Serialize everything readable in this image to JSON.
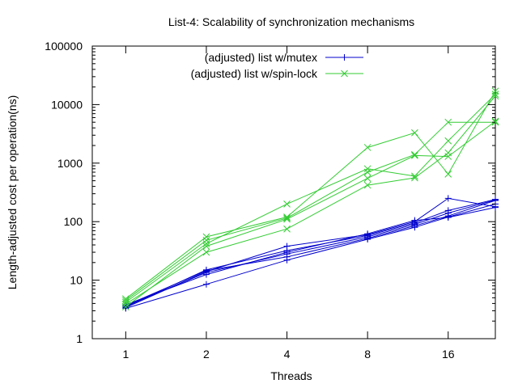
{
  "chart_data": {
    "type": "line",
    "title": "List-4: Scalability of synchronization mechanisms",
    "xlabel": "Threads",
    "ylabel": "Length-adjusted cost per operation(ns)",
    "x_scale": "log2",
    "y_scale": "log10",
    "xlim": [
      0.75,
      24
    ],
    "ylim": [
      1,
      100000
    ],
    "x_ticks": [
      1,
      2,
      4,
      8,
      16
    ],
    "x_tick_labels": [
      "1",
      "2",
      "4",
      "8",
      "16"
    ],
    "y_ticks": [
      1,
      10,
      100,
      1000,
      10000,
      100000
    ],
    "y_tick_labels": [
      "1",
      "10",
      "100",
      "1000",
      "10000",
      "100000"
    ],
    "grid": false,
    "legend_position": "top-center",
    "series": [
      {
        "name": "(adjusted) list w/mutex",
        "color": "#0000cc",
        "marker": "plus",
        "runs": [
          [
            [
              1,
              3.4
            ],
            [
              2,
              14
            ],
            [
              4,
              38
            ],
            [
              8,
              60
            ],
            [
              12,
              100
            ],
            [
              16,
              250
            ],
            [
              24,
              180
            ]
          ],
          [
            [
              1,
              3.5
            ],
            [
              2,
              15
            ],
            [
              4,
              32
            ],
            [
              8,
              58
            ],
            [
              12,
              95
            ],
            [
              16,
              155
            ],
            [
              24,
              240
            ]
          ],
          [
            [
              1,
              3.6
            ],
            [
              2,
              13.5
            ],
            [
              4,
              28
            ],
            [
              8,
              55
            ],
            [
              12,
              90
            ],
            [
              16,
              140
            ],
            [
              24,
              235
            ]
          ],
          [
            [
              1,
              3.7
            ],
            [
              2,
              14.5
            ],
            [
              4,
              25
            ],
            [
              8,
              52
            ],
            [
              12,
              85
            ],
            [
              16,
              125
            ],
            [
              24,
              230
            ]
          ],
          [
            [
              1,
              3.3
            ],
            [
              2,
              8.5
            ],
            [
              4,
              22
            ],
            [
              8,
              50
            ],
            [
              12,
              80
            ],
            [
              16,
              120
            ],
            [
              24,
              200
            ]
          ],
          [
            [
              1,
              3.8
            ],
            [
              2,
              12.5
            ],
            [
              4,
              30
            ],
            [
              8,
              62
            ],
            [
              12,
              105
            ],
            [
              16,
              118
            ],
            [
              24,
              175
            ]
          ]
        ]
      },
      {
        "name": "(adjusted) list w/spin-lock",
        "color": "#33cc33",
        "marker": "cross",
        "runs": [
          [
            [
              1,
              4.8
            ],
            [
              2,
              55
            ],
            [
              4,
              120
            ],
            [
              8,
              1850
            ],
            [
              12,
              3300
            ],
            [
              16,
              650
            ],
            [
              24,
              17000
            ]
          ],
          [
            [
              1,
              4.2
            ],
            [
              2,
              42
            ],
            [
              4,
              200
            ],
            [
              8,
              800
            ],
            [
              12,
              600
            ],
            [
              16,
              2400
            ],
            [
              24,
              15000
            ]
          ],
          [
            [
              1,
              3.5
            ],
            [
              2,
              38
            ],
            [
              4,
              110
            ],
            [
              8,
              550
            ],
            [
              12,
              1350
            ],
            [
              16,
              1300
            ],
            [
              24,
              5200
            ]
          ],
          [
            [
              1,
              3.9
            ],
            [
              2,
              30
            ],
            [
              4,
              75
            ],
            [
              8,
              420
            ],
            [
              12,
              560
            ],
            [
              16,
              1500
            ],
            [
              24,
              14000
            ]
          ],
          [
            [
              1,
              4.5
            ],
            [
              2,
              48
            ],
            [
              4,
              115
            ],
            [
              8,
              700
            ],
            [
              12,
              1400
            ],
            [
              16,
              5000
            ],
            [
              24,
              5000
            ]
          ]
        ]
      }
    ]
  }
}
